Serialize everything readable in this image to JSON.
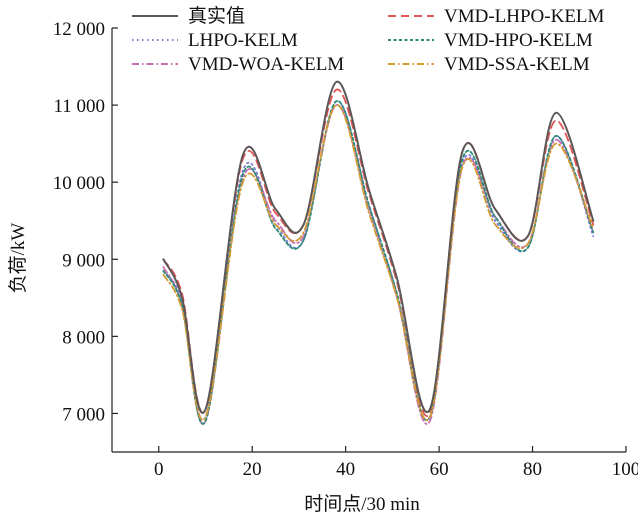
{
  "chart_data": {
    "type": "line",
    "xlabel": "时间点/30 min",
    "ylabel": "负荷/kW",
    "xlim": [
      -10,
      100
    ],
    "ylim": [
      6500,
      12000
    ],
    "x_ticks": [
      0,
      20,
      40,
      60,
      80,
      100
    ],
    "x_tick_labels": [
      "0",
      "20",
      "40",
      "60",
      "80",
      "100"
    ],
    "y_ticks": [
      7000,
      8000,
      9000,
      10000,
      11000,
      12000
    ],
    "y_tick_labels": [
      "7 000",
      "8 000",
      "9 000",
      "10 000",
      "11 000",
      "12 000"
    ],
    "grid": false,
    "legend_position": "top",
    "x": [
      1,
      5,
      10,
      18,
      25,
      31,
      38,
      45,
      51,
      58,
      65,
      72,
      79,
      85,
      93
    ],
    "series": [
      {
        "name": "真实值",
        "color": "#5c5656",
        "dash": "solid",
        "values": [
          9000,
          8500,
          7050,
          10350,
          9650,
          9450,
          11300,
          9900,
          8750,
          7050,
          10400,
          9650,
          9300,
          10900,
          9500
        ]
      },
      {
        "name": "LHPO-KELM",
        "color": "#7b7fd6",
        "dash": "dotted",
        "values": [
          8850,
          8450,
          6950,
          10150,
          9450,
          9250,
          11050,
          9700,
          8550,
          6950,
          10250,
          9500,
          9150,
          10600,
          9300
        ]
      },
      {
        "name": "VMD-WOA-KELM",
        "color": "#c86fb3",
        "dash": "dashdot",
        "values": [
          8900,
          8400,
          6900,
          10050,
          9500,
          9300,
          11000,
          9650,
          8500,
          6900,
          10200,
          9550,
          9200,
          10550,
          9350
        ]
      },
      {
        "name": "VMD-LHPO-KELM",
        "color": "#e05555",
        "dash": "dashed",
        "values": [
          9000,
          8550,
          7050,
          10300,
          9600,
          9450,
          11200,
          9850,
          8700,
          7000,
          10400,
          9650,
          9300,
          10800,
          9450
        ]
      },
      {
        "name": "VMD-HPO-KELM",
        "color": "#2e8b7a",
        "dash": "dense-dash",
        "values": [
          8850,
          8400,
          6900,
          10100,
          9400,
          9250,
          11050,
          9700,
          8550,
          6950,
          10300,
          9550,
          9150,
          10600,
          9350
        ]
      },
      {
        "name": "VMD-SSA-KELM",
        "color": "#d39b34",
        "dash": "dashdot",
        "values": [
          8800,
          8350,
          6950,
          10000,
          9450,
          9350,
          11000,
          9600,
          8500,
          6950,
          10200,
          9450,
          9200,
          10500,
          9400
        ]
      }
    ]
  }
}
